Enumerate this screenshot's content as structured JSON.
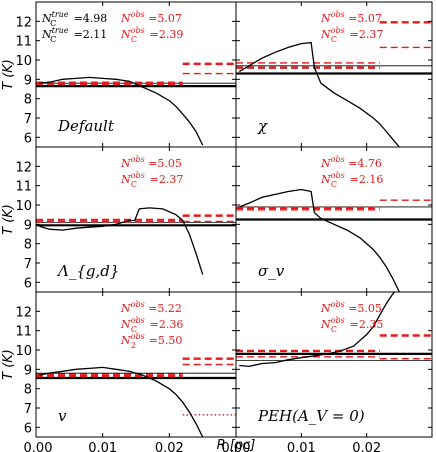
{
  "chart_data": {
    "type": "line",
    "xlabel": "R [pc]",
    "ylabel": "T (K)",
    "xlim": [
      0.0,
      0.03
    ],
    "ylim": [
      5.5,
      13.0
    ],
    "xticks": [
      "0.00",
      "0.01",
      "0.02"
    ],
    "xtick_values": [
      0.0,
      0.01,
      0.02
    ],
    "yticks": [
      "6",
      "7",
      "8",
      "9",
      "10",
      "11",
      "12"
    ],
    "ytick_values": [
      6,
      7,
      8,
      9,
      10,
      11,
      12
    ],
    "colors": {
      "axis": "#000000",
      "profile": "#000000",
      "observed": "#e8191c"
    },
    "panels": [
      {
        "label": "Default",
        "annotations": [
          {
            "text": "N_true_C = 4.98",
            "color": "black"
          },
          {
            "text": "N_true_C = 2.11",
            "color": "black"
          },
          {
            "text": "N_obs = 5.07",
            "color": "red"
          },
          {
            "text": "N_obs_C = 2.39",
            "color": "red"
          }
        ],
        "profile": {
          "x": [
            0.0005,
            0.002,
            0.004,
            0.006,
            0.008,
            0.01,
            0.012,
            0.014,
            0.016,
            0.018,
            0.02,
            0.021,
            0.022,
            0.023,
            0.024,
            0.025
          ],
          "y": [
            8.8,
            8.85,
            9.0,
            9.05,
            9.1,
            9.05,
            9.0,
            8.9,
            8.6,
            8.3,
            7.9,
            7.6,
            7.2,
            6.8,
            6.3,
            5.6
          ]
        },
        "hlines": [
          {
            "y": 8.65,
            "x0": 0.0,
            "x1": 0.03,
            "color": "black",
            "style": "solid",
            "width": 2.2
          },
          {
            "y": 8.8,
            "x0": 0.0,
            "x1": 0.03,
            "color": "black",
            "style": "solid",
            "width": 0.8
          },
          {
            "y": 8.75,
            "x0": 0.0,
            "x1": 0.022,
            "color": "red",
            "style": "dashed",
            "width": 2.4
          },
          {
            "y": 8.85,
            "x0": 0.0,
            "x1": 0.022,
            "color": "red",
            "style": "dashed",
            "width": 1.4
          },
          {
            "y": 9.3,
            "x0": 0.022,
            "x1": 0.03,
            "color": "red",
            "style": "dashed",
            "width": 1.4
          },
          {
            "y": 9.8,
            "x0": 0.022,
            "x1": 0.03,
            "color": "red",
            "style": "dashed",
            "width": 2.4
          }
        ]
      },
      {
        "label": "χ",
        "annotations": [
          {
            "text": "N_obs = 5.07",
            "color": "red"
          },
          {
            "text": "N_obs_C = 2.37",
            "color": "red"
          }
        ],
        "profile": {
          "x": [
            0.0005,
            0.002,
            0.004,
            0.006,
            0.008,
            0.01,
            0.0115,
            0.012,
            0.013,
            0.015,
            0.017,
            0.019,
            0.021,
            0.022,
            0.023,
            0.024,
            0.025
          ],
          "y": [
            9.4,
            9.7,
            10.1,
            10.4,
            10.65,
            10.85,
            10.9,
            9.6,
            8.8,
            8.3,
            7.9,
            7.5,
            7.0,
            6.7,
            6.3,
            5.9,
            5.5
          ]
        },
        "hlines": [
          {
            "y": 9.3,
            "x0": 0.0,
            "x1": 0.03,
            "color": "black",
            "style": "solid",
            "width": 2.2
          },
          {
            "y": 9.7,
            "x0": 0.0,
            "x1": 0.03,
            "color": "black",
            "style": "solid",
            "width": 0.8
          },
          {
            "y": 9.6,
            "x0": 0.0,
            "x1": 0.022,
            "color": "red",
            "style": "dashed",
            "width": 2.4
          },
          {
            "y": 9.85,
            "x0": 0.0,
            "x1": 0.022,
            "color": "red",
            "style": "dashed",
            "width": 1.4
          },
          {
            "y": 10.65,
            "x0": 0.022,
            "x1": 0.03,
            "color": "red",
            "style": "dashed",
            "width": 1.4
          },
          {
            "y": 11.95,
            "x0": 0.022,
            "x1": 0.03,
            "color": "red",
            "style": "dashed",
            "width": 2.4
          }
        ]
      },
      {
        "label": "Λ_{g,d}",
        "annotations": [
          {
            "text": "N_obs = 5.05",
            "color": "red"
          },
          {
            "text": "N_obs_C = 2.37",
            "color": "red"
          }
        ],
        "profile": {
          "x": [
            0.0005,
            0.002,
            0.004,
            0.006,
            0.008,
            0.01,
            0.012,
            0.014,
            0.0148,
            0.0155,
            0.017,
            0.019,
            0.021,
            0.022,
            0.023,
            0.024,
            0.025
          ],
          "y": [
            8.9,
            8.75,
            8.7,
            8.8,
            8.85,
            8.9,
            9.0,
            9.2,
            9.2,
            9.8,
            9.85,
            9.8,
            9.5,
            9.2,
            8.5,
            7.5,
            6.4
          ]
        },
        "hlines": [
          {
            "y": 8.95,
            "x0": 0.0,
            "x1": 0.03,
            "color": "black",
            "style": "solid",
            "width": 2.2
          },
          {
            "y": 9.1,
            "x0": 0.0,
            "x1": 0.03,
            "color": "black",
            "style": "solid",
            "width": 0.8
          },
          {
            "y": 9.15,
            "x0": 0.0,
            "x1": 0.022,
            "color": "red",
            "style": "dashed",
            "width": 2.4
          },
          {
            "y": 9.25,
            "x0": 0.0,
            "x1": 0.022,
            "color": "red",
            "style": "dashed",
            "width": 1.4
          },
          {
            "y": 9.45,
            "x0": 0.022,
            "x1": 0.03,
            "color": "red",
            "style": "dashed",
            "width": 2.4
          },
          {
            "y": 9.15,
            "x0": 0.022,
            "x1": 0.03,
            "color": "red",
            "style": "dashed",
            "width": 1.4
          }
        ]
      },
      {
        "label": "σ_v",
        "annotations": [
          {
            "text": "N_obs = 4.76",
            "color": "red"
          },
          {
            "text": "N_obs_C = 2.16",
            "color": "red"
          }
        ],
        "profile": {
          "x": [
            0.0005,
            0.002,
            0.004,
            0.006,
            0.008,
            0.01,
            0.0115,
            0.012,
            0.013,
            0.015,
            0.017,
            0.019,
            0.021,
            0.022,
            0.023,
            0.024,
            0.025
          ],
          "y": [
            9.9,
            10.1,
            10.4,
            10.55,
            10.7,
            10.8,
            10.7,
            9.6,
            9.3,
            9.0,
            8.7,
            8.3,
            7.7,
            7.3,
            6.8,
            6.2,
            5.5
          ]
        },
        "hlines": [
          {
            "y": 9.25,
            "x0": 0.0,
            "x1": 0.03,
            "color": "black",
            "style": "solid",
            "width": 2.2
          },
          {
            "y": 9.9,
            "x0": 0.0,
            "x1": 0.03,
            "color": "black",
            "style": "solid",
            "width": 0.8
          },
          {
            "y": 9.85,
            "x0": 0.0,
            "x1": 0.022,
            "color": "red",
            "style": "dashed",
            "width": 2.4
          },
          {
            "y": 9.75,
            "x0": 0.0,
            "x1": 0.022,
            "color": "red",
            "style": "dashed",
            "width": 1.4
          },
          {
            "y": 10.25,
            "x0": 0.022,
            "x1": 0.03,
            "color": "red",
            "style": "dashed",
            "width": 1.4
          }
        ]
      },
      {
        "label": "v",
        "annotations": [
          {
            "text": "N_obs = 5.22",
            "color": "red"
          },
          {
            "text": "N_obs_C = 2.36",
            "color": "red"
          },
          {
            "text": "N_obs_2 = 5.50",
            "color": "red"
          }
        ],
        "profile": {
          "x": [
            0.0005,
            0.002,
            0.004,
            0.006,
            0.008,
            0.01,
            0.012,
            0.014,
            0.016,
            0.018,
            0.02,
            0.021,
            0.022,
            0.023,
            0.024,
            0.025
          ],
          "y": [
            8.7,
            8.8,
            8.9,
            9.0,
            9.05,
            9.1,
            9.0,
            8.9,
            8.7,
            8.4,
            8.0,
            7.7,
            7.3,
            6.8,
            6.2,
            5.5
          ]
        },
        "hlines": [
          {
            "y": 8.55,
            "x0": 0.0,
            "x1": 0.03,
            "color": "black",
            "style": "solid",
            "width": 2.2
          },
          {
            "y": 8.8,
            "x0": 0.0,
            "x1": 0.03,
            "color": "black",
            "style": "solid",
            "width": 0.8
          },
          {
            "y": 8.65,
            "x0": 0.0,
            "x1": 0.022,
            "color": "red",
            "style": "dashed",
            "width": 2.4
          },
          {
            "y": 8.75,
            "x0": 0.0,
            "x1": 0.022,
            "color": "red",
            "style": "dashed",
            "width": 1.4
          },
          {
            "y": 9.25,
            "x0": 0.022,
            "x1": 0.03,
            "color": "red",
            "style": "dashed",
            "width": 1.4
          },
          {
            "y": 9.55,
            "x0": 0.022,
            "x1": 0.03,
            "color": "red",
            "style": "dashed",
            "width": 2.4
          },
          {
            "y": 6.65,
            "x0": 0.022,
            "x1": 0.03,
            "color": "red",
            "style": "dotted",
            "width": 1.4
          }
        ]
      },
      {
        "label": "PEH(A_V = 0)",
        "annotations": [
          {
            "text": "N_obs = 5.05",
            "color": "red"
          },
          {
            "text": "N_obs_C = 2.35",
            "color": "red"
          }
        ],
        "profile": {
          "x": [
            0.0005,
            0.002,
            0.004,
            0.006,
            0.008,
            0.01,
            0.012,
            0.014,
            0.016,
            0.018,
            0.019,
            0.02,
            0.021,
            0.022,
            0.023,
            0.024,
            0.0245
          ],
          "y": [
            9.2,
            9.15,
            9.3,
            9.35,
            9.5,
            9.6,
            9.7,
            9.8,
            9.95,
            10.2,
            10.5,
            10.8,
            11.2,
            11.8,
            12.4,
            12.9,
            13.1
          ]
        },
        "hlines": [
          {
            "y": 9.8,
            "x0": 0.0,
            "x1": 0.03,
            "color": "black",
            "style": "solid",
            "width": 2.2
          },
          {
            "y": 9.45,
            "x0": 0.0,
            "x1": 0.03,
            "color": "black",
            "style": "solid",
            "width": 0.8
          },
          {
            "y": 9.95,
            "x0": 0.0,
            "x1": 0.022,
            "color": "red",
            "style": "dashed",
            "width": 2.4
          },
          {
            "y": 9.65,
            "x0": 0.0,
            "x1": 0.022,
            "color": "red",
            "style": "dashed",
            "width": 1.4
          },
          {
            "y": 10.75,
            "x0": 0.022,
            "x1": 0.03,
            "color": "red",
            "style": "dashed",
            "width": 2.4
          },
          {
            "y": 9.55,
            "x0": 0.022,
            "x1": 0.03,
            "color": "red",
            "style": "dashed",
            "width": 1.4
          }
        ]
      }
    ]
  }
}
